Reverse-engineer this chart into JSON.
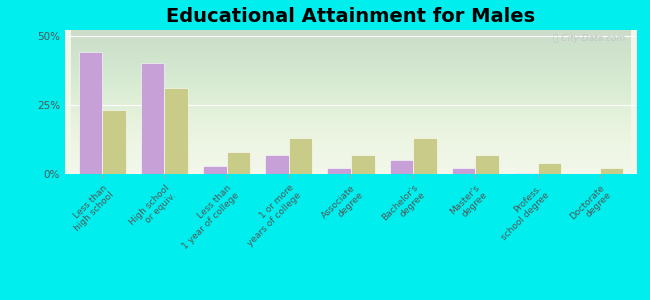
{
  "title": "Educational Attainment for Males",
  "categories": [
    "Less than\nhigh school",
    "High school\nor equiv.",
    "Less than\n1 year of college",
    "1 or more\nyears of college",
    "Associate\ndegree",
    "Bachelor's\ndegree",
    "Master's\ndegree",
    "Profess.\nschool degree",
    "Doctorate\ndegree"
  ],
  "summersville": [
    44,
    40,
    3,
    7,
    2,
    5,
    2,
    0.5,
    0
  ],
  "kentucky": [
    23,
    31,
    8,
    13,
    7,
    13,
    7,
    4,
    2
  ],
  "summersville_color": "#c8a0d8",
  "kentucky_color": "#c8cc88",
  "background_color": "#00eeee",
  "plot_bg_grad_top": "#f2f7e8",
  "plot_bg_grad_bottom": "#e0edd0",
  "yticks": [
    0,
    25,
    50
  ],
  "ylabels": [
    "0%",
    "25%",
    "50%"
  ],
  "ylim": [
    0,
    52
  ],
  "bar_width": 0.38,
  "title_fontsize": 14,
  "tick_fontsize": 6.5,
  "legend_fontsize": 9.5,
  "watermark": "City-Data.com"
}
